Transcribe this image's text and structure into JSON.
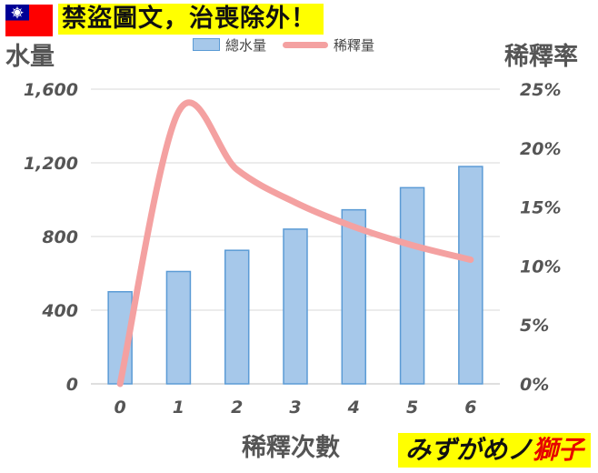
{
  "header": {
    "title": "禁盜圖文，治喪除外！"
  },
  "signature": {
    "main": "みずがめノ",
    "accent": "獅子"
  },
  "colors": {
    "bar_fill": "#a6c8ea",
    "bar_stroke": "#5b9bd5",
    "line": "#f4a1a1",
    "banner": "#ffff00",
    "gridline": "#d9d9d9",
    "text": "#555555"
  },
  "chart_data": {
    "type": "bar",
    "title": "",
    "xlabel": "稀釋次數",
    "ylabel": "水量",
    "y2label": "稀釋率",
    "categories": [
      "0",
      "1",
      "2",
      "3",
      "4",
      "5",
      "6"
    ],
    "series": [
      {
        "name": "總水量",
        "type": "bar",
        "axis": "left",
        "values": [
          500,
          610,
          725,
          840,
          945,
          1065,
          1180
        ]
      },
      {
        "name": "稀釋量",
        "type": "line",
        "axis": "right",
        "smooth": true,
        "values": [
          0,
          0.2308,
          0.1818,
          0.1538,
          0.1333,
          0.1176,
          0.1053
        ]
      }
    ],
    "ylim": [
      0,
      1600
    ],
    "y_ticks": [
      0,
      400,
      800,
      1200,
      1600
    ],
    "y_tick_labels": [
      "0",
      "400",
      "800",
      "1,200",
      "1,600"
    ],
    "y2lim": [
      0,
      0.25
    ],
    "y2_ticks": [
      0,
      0.05,
      0.1,
      0.15,
      0.2,
      0.25
    ],
    "y2_tick_labels": [
      "0%",
      "5%",
      "10%",
      "15%",
      "20%",
      "25%"
    ],
    "grid": true,
    "legend_position": "top"
  }
}
